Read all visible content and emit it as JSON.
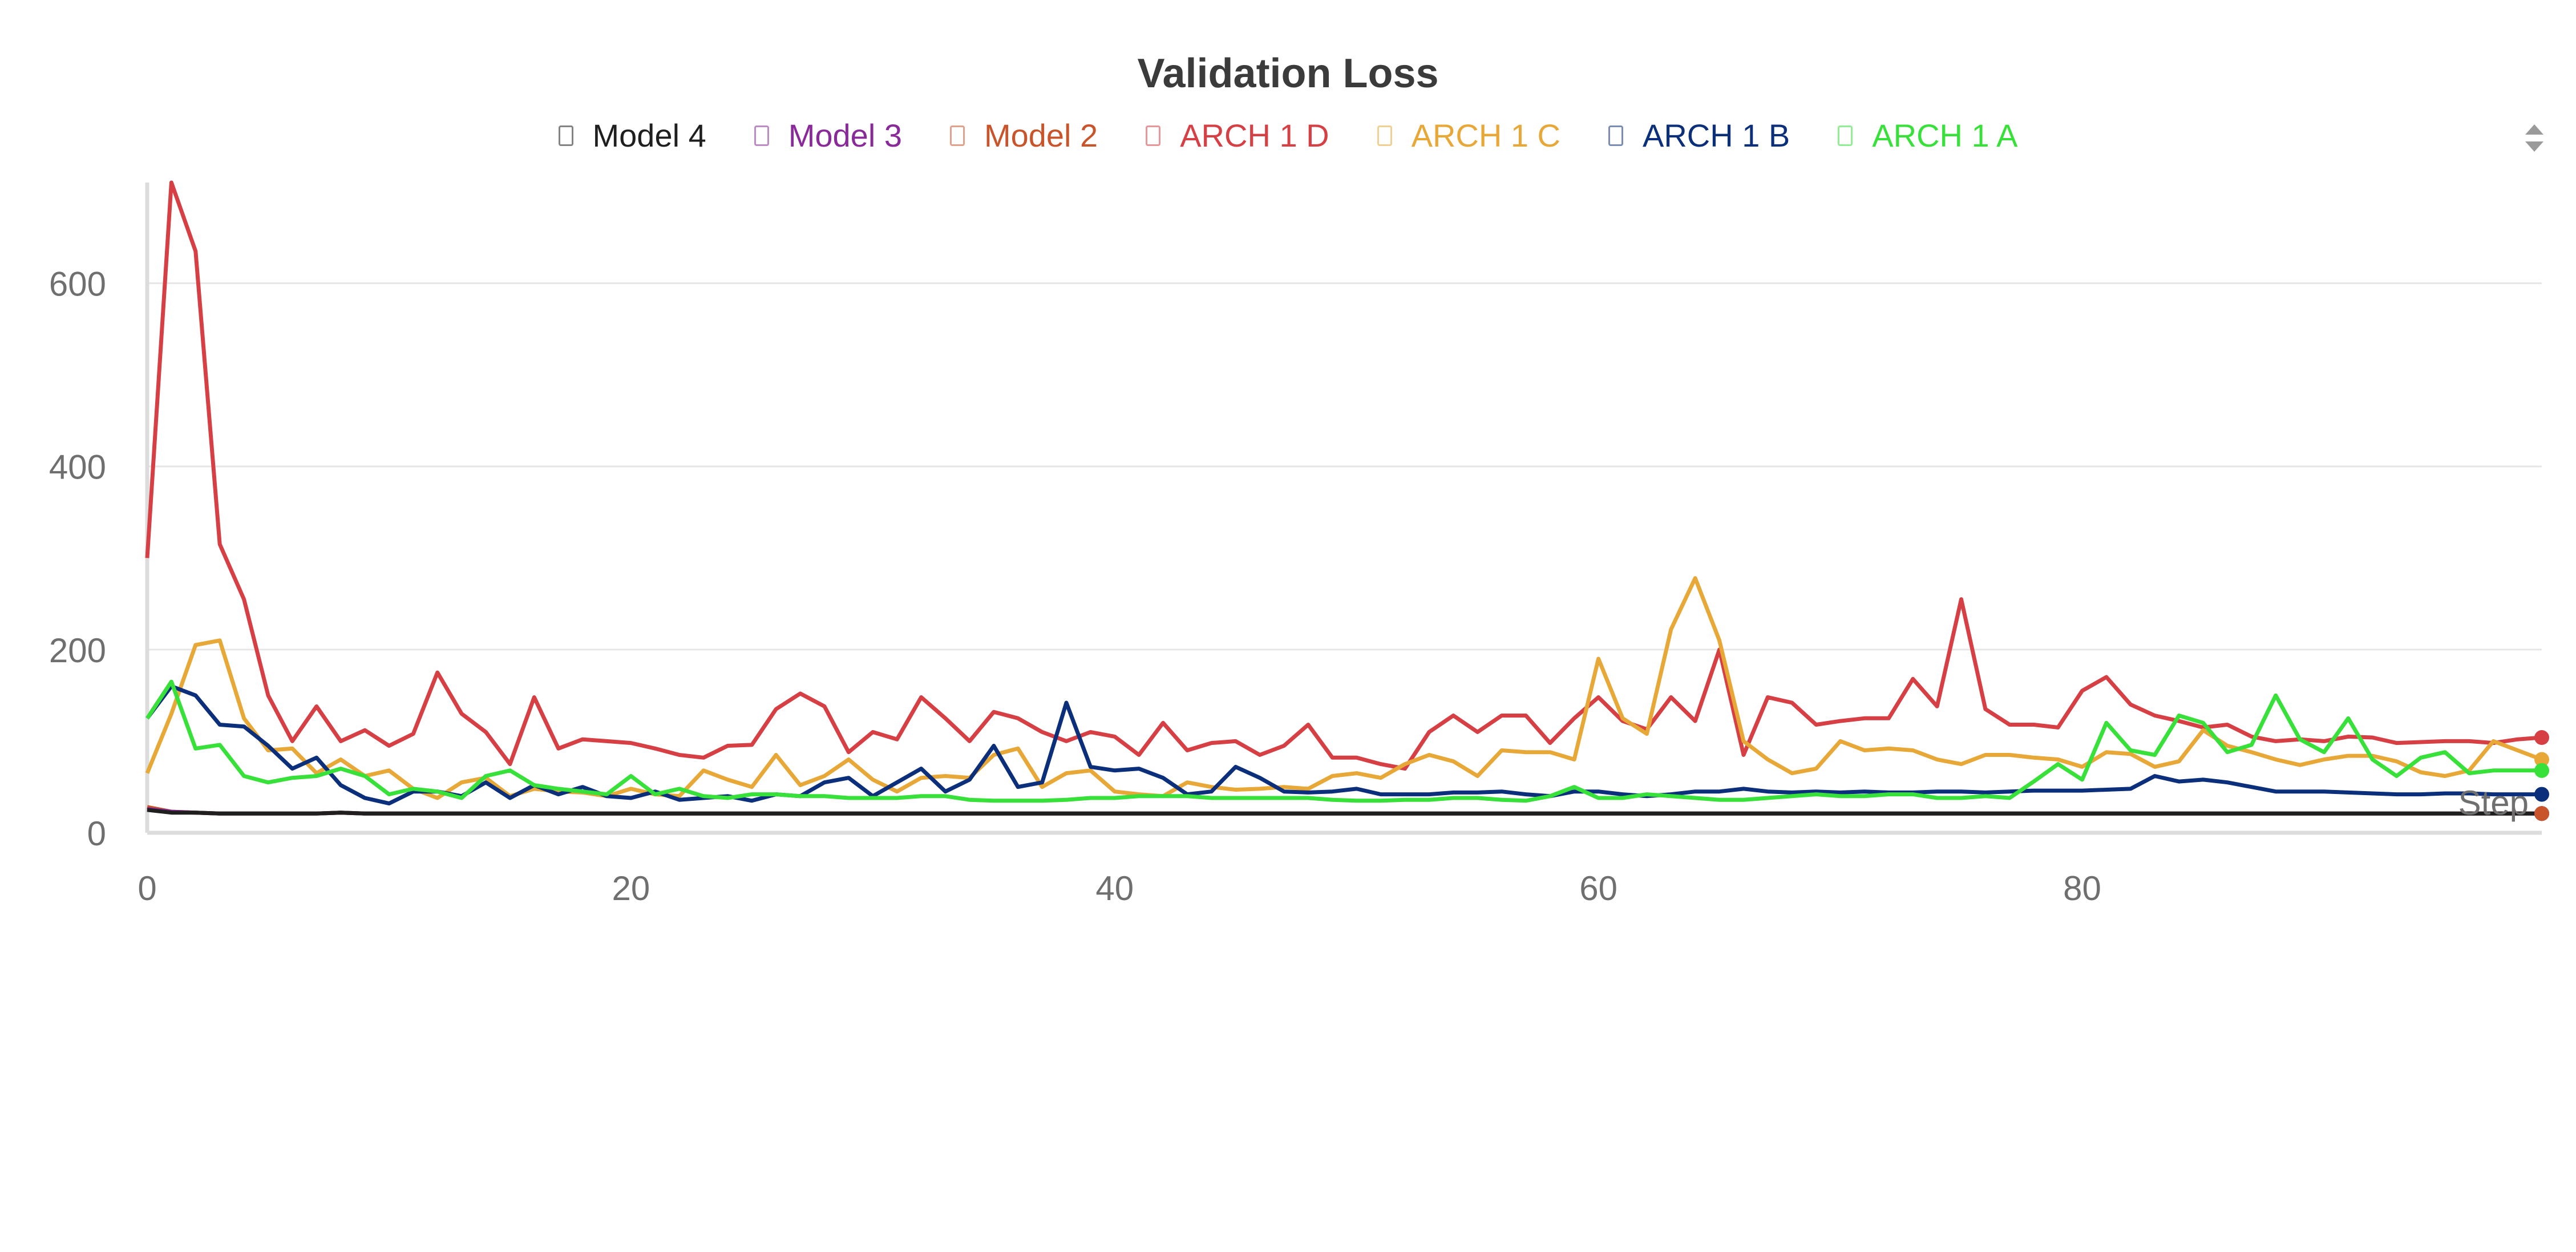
{
  "chart_data": {
    "type": "line",
    "title": "Validation Loss",
    "xlabel": "Step",
    "ylabel": "",
    "xlim": [
      0,
      99
    ],
    "ylim": [
      0,
      710
    ],
    "xticks": [
      0,
      20,
      40,
      60,
      80
    ],
    "yticks": [
      0,
      200,
      400,
      600
    ],
    "grid": true,
    "legend_position": "top",
    "series": [
      {
        "name": "Model 4",
        "color": "#1f1f1f",
        "values": [
          25,
          22,
          22,
          21,
          21,
          21,
          21,
          21,
          22,
          21,
          21,
          21,
          21,
          21,
          21,
          21,
          21,
          21,
          21,
          21,
          21,
          21,
          21,
          21,
          21,
          21,
          21,
          21,
          21,
          21,
          21,
          21,
          21,
          21,
          21,
          21,
          21,
          21,
          21,
          21,
          21,
          21,
          21,
          21,
          21,
          21,
          21,
          21,
          21,
          21,
          21,
          21,
          21,
          21,
          21,
          21,
          21,
          21,
          21,
          21,
          21,
          21,
          21,
          21,
          21,
          21,
          21,
          21,
          21,
          21,
          21,
          21,
          21,
          21,
          21,
          21,
          21,
          21,
          21,
          21,
          21,
          21,
          21,
          21,
          21,
          21,
          21,
          21,
          21,
          21,
          21,
          21,
          21,
          21,
          21,
          21,
          21,
          21,
          21,
          21
        ]
      },
      {
        "name": "Model 3",
        "color": "#8a2a9a",
        "values": [
          26,
          23,
          22,
          21,
          21,
          21,
          21,
          21,
          22,
          21,
          21,
          21,
          21,
          21,
          21,
          21,
          21,
          21,
          21,
          21,
          21,
          21,
          21,
          21,
          21,
          21,
          21,
          21,
          21,
          21,
          21,
          21,
          21,
          21,
          21,
          21,
          21,
          21,
          21,
          21,
          21,
          21,
          21,
          21,
          21,
          21,
          21,
          21,
          21,
          21,
          21,
          21,
          21,
          21,
          21,
          21,
          21,
          21,
          21,
          21,
          21,
          21,
          21,
          21,
          21,
          21,
          21,
          21,
          21,
          21,
          21,
          21,
          21,
          21,
          21,
          21,
          21,
          21,
          21,
          21,
          21,
          21,
          21,
          21,
          21,
          21,
          21,
          21,
          21,
          21,
          21,
          21,
          21,
          21,
          21,
          21,
          21,
          21,
          21,
          21
        ]
      },
      {
        "name": "Model 2",
        "color": "#c9542a",
        "values": [
          28,
          23,
          22,
          21,
          21,
          21,
          21,
          21,
          22,
          21,
          21,
          21,
          21,
          21,
          21,
          21,
          21,
          21,
          21,
          21,
          21,
          21,
          21,
          21,
          21,
          21,
          21,
          21,
          21,
          21,
          21,
          21,
          21,
          21,
          21,
          21,
          21,
          21,
          21,
          21,
          21,
          21,
          21,
          21,
          21,
          21,
          21,
          21,
          21,
          21,
          21,
          21,
          21,
          21,
          21,
          21,
          21,
          21,
          21,
          21,
          21,
          21,
          21,
          21,
          21,
          21,
          21,
          21,
          21,
          21,
          21,
          21,
          21,
          21,
          21,
          21,
          21,
          21,
          21,
          21,
          21,
          21,
          21,
          21,
          21,
          21,
          21,
          21,
          21,
          21,
          21,
          21,
          21,
          21,
          21,
          21,
          21,
          21,
          21,
          21
        ]
      },
      {
        "name": "ARCH 1 D",
        "color": "#d64045",
        "values": [
          300,
          710,
          635,
          315,
          255,
          150,
          100,
          138,
          100,
          112,
          95,
          108,
          175,
          130,
          110,
          75,
          148,
          92,
          102,
          100,
          98,
          92,
          85,
          82,
          95,
          96,
          135,
          152,
          138,
          88,
          110,
          102,
          148,
          125,
          100,
          132,
          125,
          110,
          100,
          110,
          105,
          85,
          120,
          90,
          98,
          100,
          85,
          95,
          118,
          82,
          82,
          75,
          70,
          110,
          128,
          110,
          128,
          128,
          98,
          125,
          148,
          122,
          113,
          148,
          122,
          200,
          85,
          148,
          142,
          118,
          122,
          125,
          125,
          168,
          138,
          255,
          135,
          118,
          118,
          115,
          155,
          170,
          140,
          128,
          122,
          115,
          118,
          105,
          100,
          102,
          100,
          105,
          104,
          98,
          99,
          100,
          100,
          98,
          102,
          104
        ]
      },
      {
        "name": "ARCH 1 C",
        "color": "#e8a838",
        "values": [
          65,
          130,
          205,
          210,
          125,
          90,
          92,
          65,
          80,
          62,
          68,
          48,
          38,
          55,
          60,
          40,
          48,
          45,
          44,
          40,
          48,
          42,
          40,
          68,
          58,
          50,
          85,
          52,
          62,
          80,
          58,
          45,
          60,
          62,
          60,
          85,
          92,
          50,
          65,
          68,
          45,
          42,
          40,
          55,
          50,
          47,
          48,
          50,
          48,
          62,
          65,
          60,
          75,
          85,
          78,
          62,
          90,
          88,
          88,
          80,
          190,
          125,
          108,
          222,
          278,
          210,
          100,
          80,
          65,
          70,
          100,
          90,
          92,
          90,
          80,
          75,
          85,
          85,
          82,
          80,
          72,
          88,
          86,
          72,
          78,
          112,
          95,
          88,
          80,
          74,
          80,
          84,
          84,
          78,
          66,
          62,
          68,
          100,
          90,
          80
        ]
      },
      {
        "name": "ARCH 1 B",
        "color": "#0b2f7a",
        "values": [
          125,
          160,
          150,
          118,
          116,
          95,
          70,
          82,
          52,
          38,
          32,
          45,
          45,
          40,
          55,
          38,
          52,
          42,
          50,
          40,
          38,
          45,
          36,
          38,
          40,
          35,
          42,
          40,
          55,
          60,
          40,
          55,
          70,
          45,
          58,
          95,
          50,
          55,
          142,
          72,
          68,
          70,
          60,
          42,
          45,
          72,
          60,
          45,
          44,
          45,
          48,
          42,
          42,
          42,
          44,
          44,
          45,
          42,
          40,
          45,
          45,
          42,
          40,
          42,
          45,
          45,
          48,
          45,
          44,
          45,
          44,
          45,
          44,
          44,
          45,
          45,
          44,
          45,
          46,
          46,
          46,
          47,
          48,
          62,
          56,
          58,
          55,
          50,
          45,
          45,
          45,
          44,
          43,
          42,
          42,
          43,
          43,
          42,
          42,
          42
        ]
      },
      {
        "name": "ARCH 1 A",
        "color": "#38e03a",
        "values": [
          125,
          165,
          92,
          96,
          62,
          55,
          60,
          62,
          70,
          62,
          42,
          48,
          45,
          38,
          62,
          68,
          52,
          48,
          45,
          42,
          62,
          42,
          48,
          40,
          38,
          42,
          42,
          40,
          40,
          38,
          38,
          38,
          40,
          40,
          36,
          35,
          35,
          35,
          36,
          38,
          38,
          40,
          40,
          40,
          38,
          38,
          38,
          38,
          38,
          36,
          35,
          35,
          36,
          36,
          38,
          38,
          36,
          35,
          40,
          50,
          38,
          38,
          42,
          40,
          38,
          36,
          36,
          38,
          40,
          42,
          40,
          40,
          42,
          42,
          38,
          38,
          40,
          38,
          56,
          75,
          58,
          120,
          90,
          85,
          128,
          120,
          88,
          96,
          150,
          102,
          88,
          125,
          80,
          62,
          82,
          88,
          65,
          68,
          68,
          68
        ]
      }
    ]
  },
  "ui": {
    "sort_icon": "sort-arrows-icon"
  }
}
